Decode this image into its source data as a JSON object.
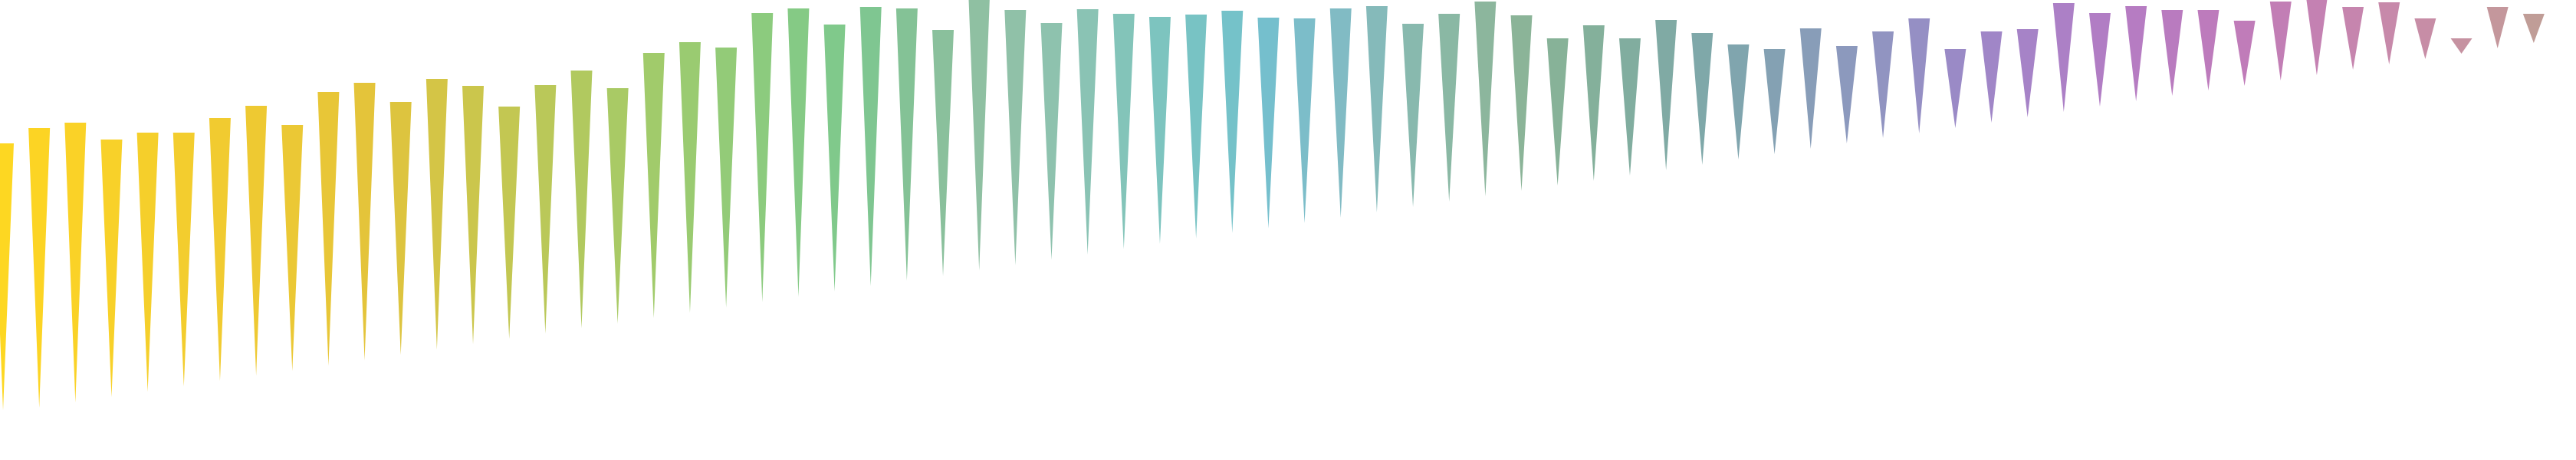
{
  "chart_data": {
    "type": "bar",
    "title": "",
    "xlabel": "",
    "ylabel": "",
    "ylim": [
      0,
      600
    ],
    "bar_top_value_range": [
      0,
      600
    ],
    "grid": false,
    "legend": "none",
    "bars": [
      {
        "top": 413,
        "bottom": 65
      },
      {
        "top": 433,
        "bottom": 68
      },
      {
        "top": 440,
        "bottom": 75
      },
      {
        "top": 418,
        "bottom": 82
      },
      {
        "top": 427,
        "bottom": 89
      },
      {
        "top": 427,
        "bottom": 96
      },
      {
        "top": 446,
        "bottom": 103
      },
      {
        "top": 462,
        "bottom": 110
      },
      {
        "top": 437,
        "bottom": 116
      },
      {
        "top": 480,
        "bottom": 123
      },
      {
        "top": 492,
        "bottom": 130
      },
      {
        "top": 467,
        "bottom": 137
      },
      {
        "top": 497,
        "bottom": 144
      },
      {
        "top": 488,
        "bottom": 151
      },
      {
        "top": 461,
        "bottom": 158
      },
      {
        "top": 489,
        "bottom": 165
      },
      {
        "top": 508,
        "bottom": 172
      },
      {
        "top": 485,
        "bottom": 178
      },
      {
        "top": 531,
        "bottom": 185
      },
      {
        "top": 545,
        "bottom": 192
      },
      {
        "top": 538,
        "bottom": 199
      },
      {
        "top": 583,
        "bottom": 206
      },
      {
        "top": 589,
        "bottom": 213
      },
      {
        "top": 568,
        "bottom": 220
      },
      {
        "top": 591,
        "bottom": 227
      },
      {
        "top": 589,
        "bottom": 234
      },
      {
        "top": 561,
        "bottom": 240
      },
      {
        "top": 609,
        "bottom": 247
      },
      {
        "top": 587,
        "bottom": 254
      },
      {
        "top": 570,
        "bottom": 261
      },
      {
        "top": 588,
        "bottom": 268
      },
      {
        "top": 582,
        "bottom": 275
      },
      {
        "top": 578,
        "bottom": 282
      },
      {
        "top": 581,
        "bottom": 289
      },
      {
        "top": 586,
        "bottom": 296
      },
      {
        "top": 577,
        "bottom": 302
      },
      {
        "top": 576,
        "bottom": 309
      },
      {
        "top": 589,
        "bottom": 316
      },
      {
        "top": 592,
        "bottom": 323
      },
      {
        "top": 569,
        "bottom": 330
      },
      {
        "top": 582,
        "bottom": 337
      },
      {
        "top": 598,
        "bottom": 344
      },
      {
        "top": 580,
        "bottom": 351
      },
      {
        "top": 550,
        "bottom": 358
      },
      {
        "top": 567,
        "bottom": 364
      },
      {
        "top": 550,
        "bottom": 371
      },
      {
        "top": 574,
        "bottom": 378
      },
      {
        "top": 557,
        "bottom": 385
      },
      {
        "top": 542,
        "bottom": 392
      },
      {
        "top": 536,
        "bottom": 399
      },
      {
        "top": 563,
        "bottom": 406
      },
      {
        "top": 540,
        "bottom": 413
      },
      {
        "top": 559,
        "bottom": 420
      },
      {
        "top": 576,
        "bottom": 426
      },
      {
        "top": 536,
        "bottom": 433
      },
      {
        "top": 559,
        "bottom": 440
      },
      {
        "top": 562,
        "bottom": 447
      },
      {
        "top": 596,
        "bottom": 454
      },
      {
        "top": 583,
        "bottom": 461
      },
      {
        "top": 592,
        "bottom": 468
      },
      {
        "top": 587,
        "bottom": 475
      },
      {
        "top": 587,
        "bottom": 482
      },
      {
        "top": 573,
        "bottom": 488
      },
      {
        "top": 598,
        "bottom": 495
      },
      {
        "top": 604,
        "bottom": 502
      },
      {
        "top": 591,
        "bottom": 509
      },
      {
        "top": 597,
        "bottom": 516
      },
      {
        "top": 576,
        "bottom": 523
      },
      {
        "top": 550,
        "bottom": 530
      },
      {
        "top": 591,
        "bottom": 537
      },
      {
        "top": 582,
        "bottom": 544
      },
      {
        "top": 550,
        "bottom": 550
      }
    ],
    "colors": [
      "#fdd722",
      "#fcd424",
      "#fad227",
      "#f8d129",
      "#f5cf2b",
      "#f3cd2e",
      "#f1cb30",
      "#eec932",
      "#ebc835",
      "#e8c637",
      "#e4c43a",
      "#ddc43f",
      "#d4c546",
      "#cbc64c",
      "#c3c752",
      "#bac859",
      "#b1c95f",
      "#a9ca65",
      "#a1cb6b",
      "#9acb71",
      "#93cb78",
      "#8ccb7e",
      "#85ca85",
      "#80c98b",
      "#7fc691",
      "#84c296",
      "#8ac09c",
      "#8fc0a2",
      "#90c1a8",
      "#8ec2ae",
      "#8ac3b4",
      "#83c4b9",
      "#7dc4bf",
      "#78c3c4",
      "#75c2c9",
      "#75bfcd",
      "#7cbdc9",
      "#81bbc4",
      "#85baba",
      "#88b9ae",
      "#8ab8a4",
      "#8cb69d",
      "#8bb498",
      "#87b298",
      "#84b09b",
      "#81ad9f",
      "#80aaa4",
      "#7fa8a9",
      "#80a5ae",
      "#84a1b3",
      "#889db8",
      "#8c99bd",
      "#9194c1",
      "#958fc4",
      "#9a8ac6",
      "#a086c7",
      "#a683c7",
      "#ac80c6",
      "#b17dc4",
      "#b67cc2",
      "#b97bbf",
      "#bd7bbc",
      "#c07cb9",
      "#c27eb5",
      "#c481b2",
      "#c685ae",
      "#c789aa",
      "#c78da6",
      "#c692a1",
      "#c4979c",
      "#c09d97",
      "#bba292"
    ]
  }
}
